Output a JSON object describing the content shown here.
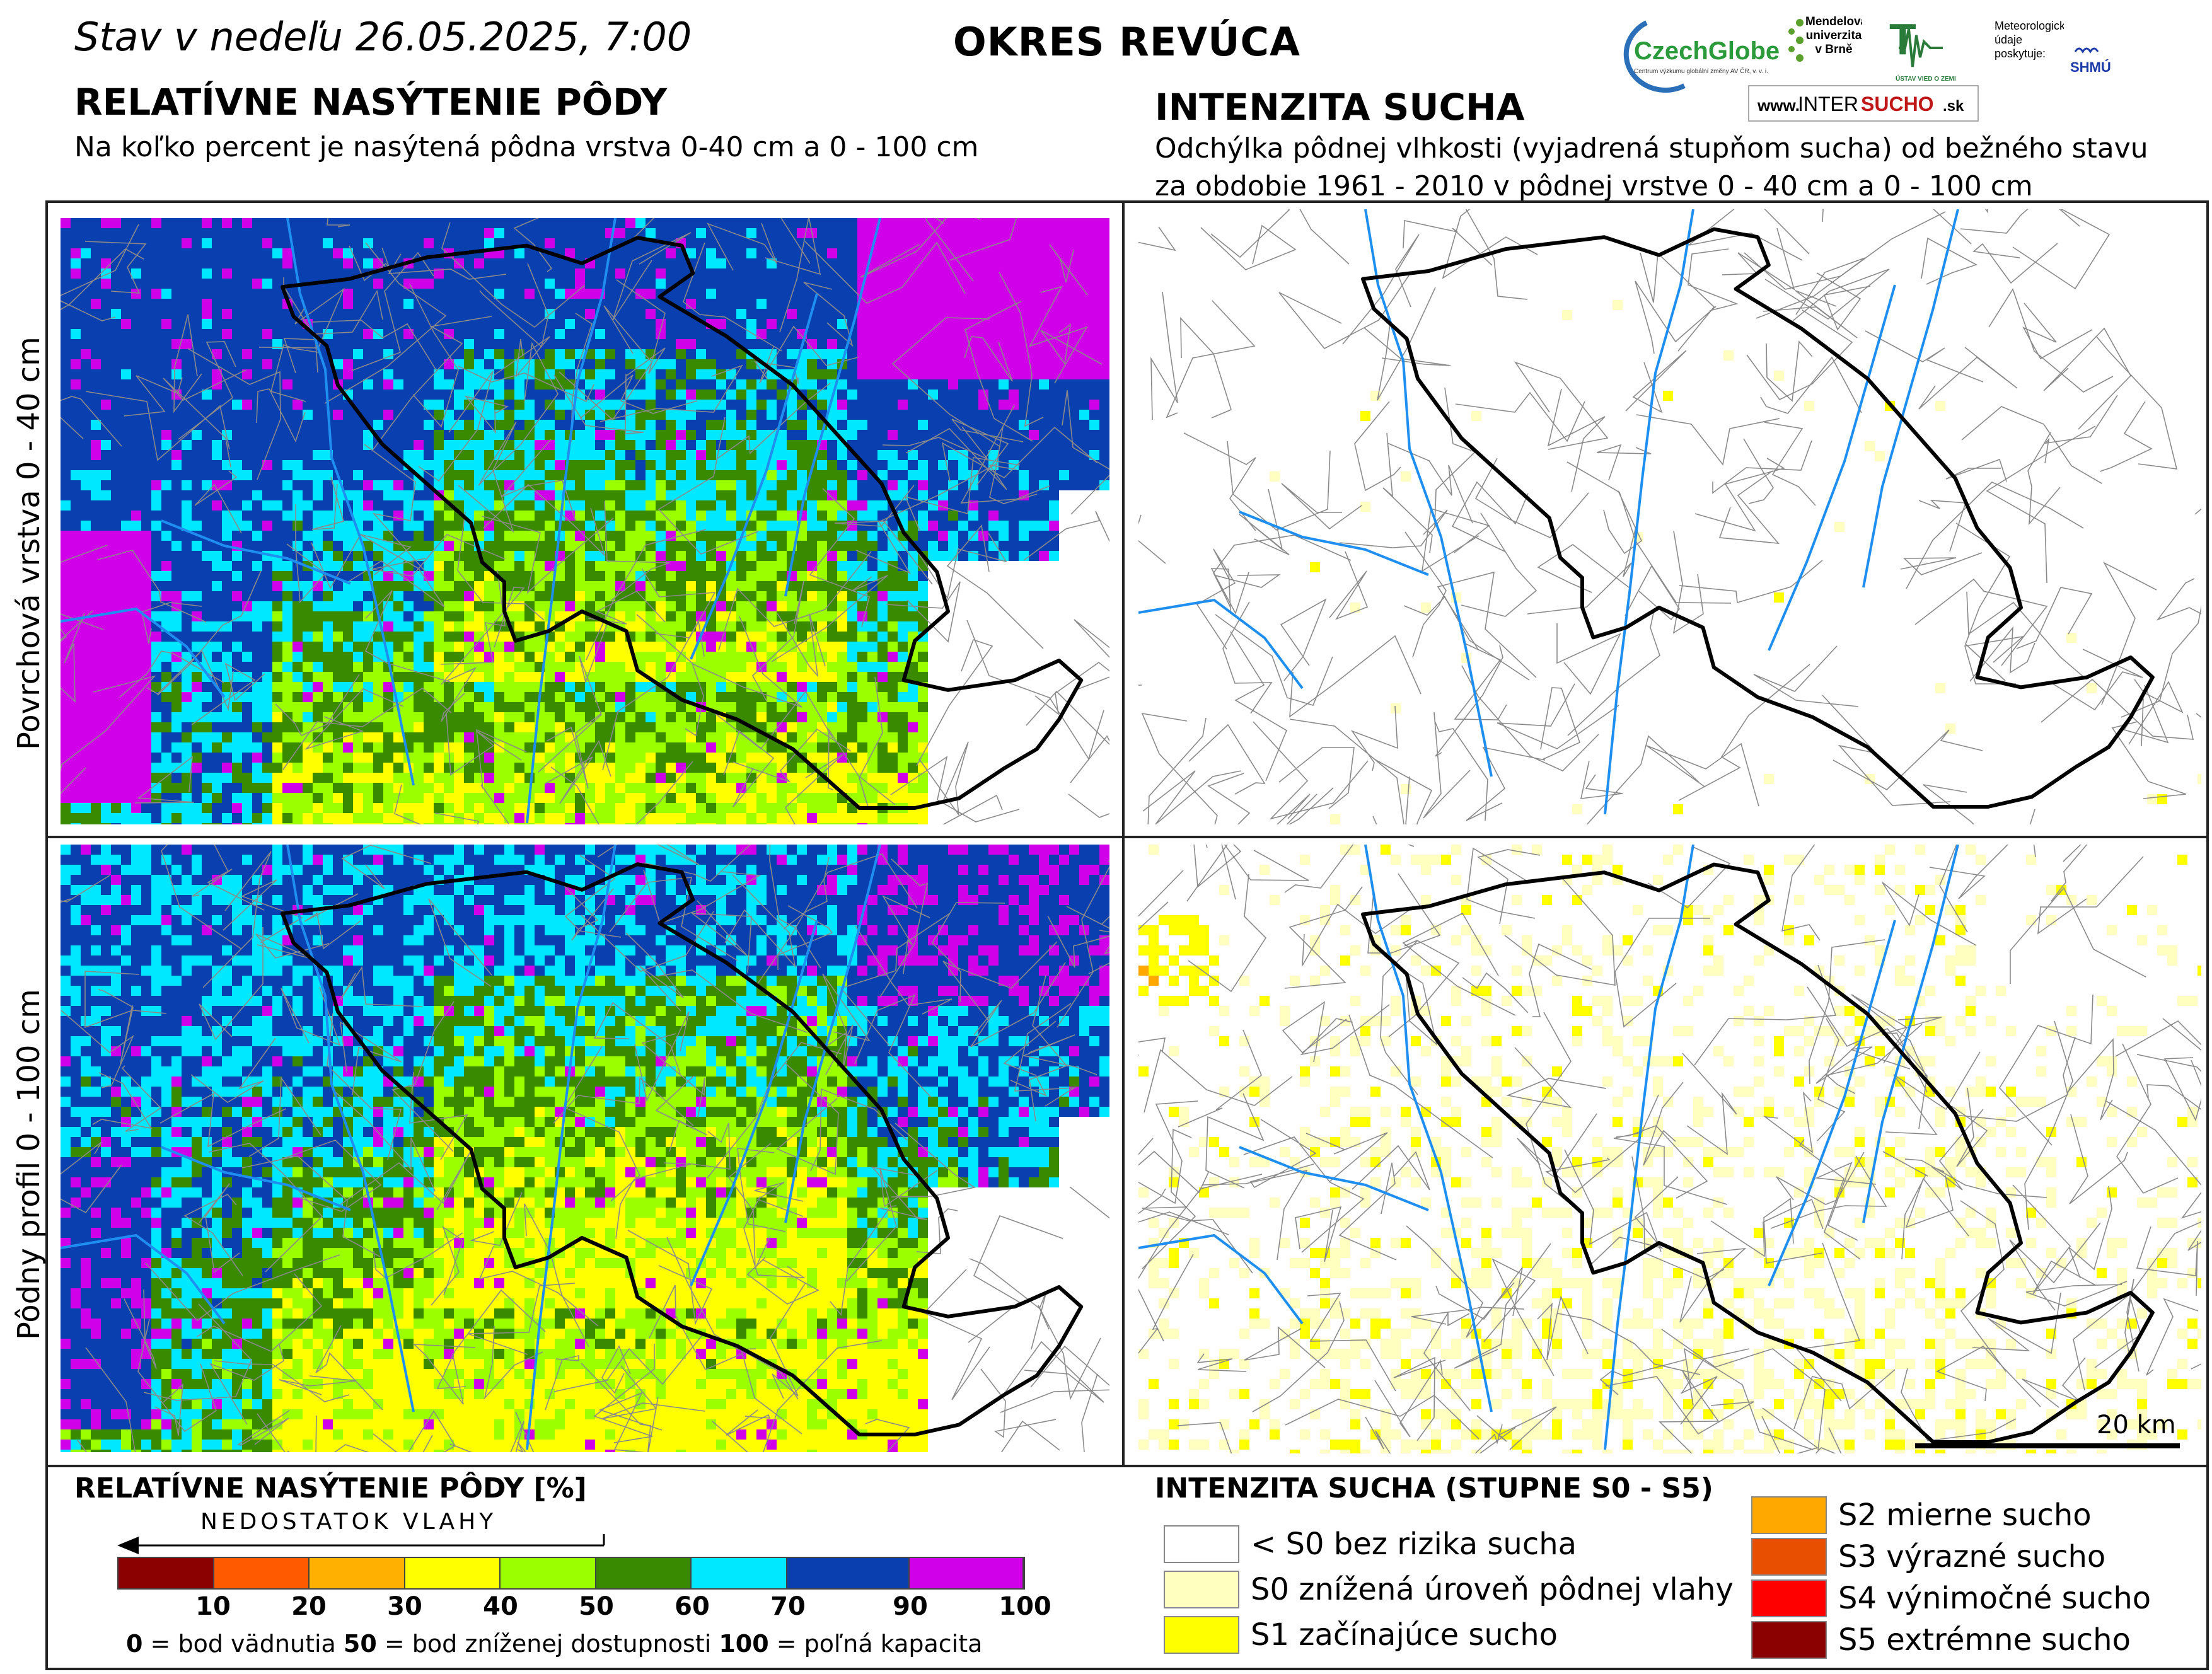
{
  "header": {
    "date_text": "Stav v nedeľu 26.05.2025, 7:00",
    "district": "OKRES  REVÚCA"
  },
  "left": {
    "title": "RELATÍVNE NASÝTENIE PÔDY",
    "subtitle": "Na koľko percent je nasýtená pôdna vrstva 0-40 cm a 0 - 100 cm"
  },
  "right": {
    "title": "INTENZITA SUCHA",
    "subtitle_line1": "Odchýlka pôdnej vlhkosti (vyjadrená stupňom sucha) od bežného stavu",
    "subtitle_line2": "za obdobie 1961 - 2010 v pôdnej vrstve 0 - 40 cm a 0 - 100 cm"
  },
  "logos": {
    "czechglobe": "CzechGlobe",
    "czechglobe_sub": "Centrum výzkumu globální změny AV ČR, v. v. i.",
    "mendel": "Mendelova univerzita v Brně",
    "uvz": "ÚSTAV VIED O ZEMI",
    "meteo_note": "Meteorologické údaje poskytuje:",
    "shmu": "SHMÚ",
    "intersucho_www": "www.",
    "intersucho_a": "INTER",
    "intersucho_b": "SUCHO",
    "intersucho_c": ".sk"
  },
  "rows": {
    "top": "Povrchová vrstva 0 - 40 cm",
    "bottom": "Pôdny profil 0 - 100 cm"
  },
  "scale_bar": "20 km",
  "legend_saturation": {
    "title": "RELATÍVNE NASÝTENIE PÔDY [%]",
    "arrow_label": "NEDOSTATOK VLAHY",
    "classes": [
      {
        "color": "#8b0000",
        "to": 10
      },
      {
        "color": "#ff5a00",
        "to": 20
      },
      {
        "color": "#ffb000",
        "to": 30
      },
      {
        "color": "#ffff00",
        "to": 40
      },
      {
        "color": "#9cff00",
        "to": 50
      },
      {
        "color": "#3a8a00",
        "to": 60
      },
      {
        "color": "#00e8ff",
        "to": 70
      },
      {
        "color": "#0a3fb0",
        "to": 90
      },
      {
        "color": "#d000e8",
        "to": 100
      }
    ],
    "ticks": [
      "10",
      "20",
      "30",
      "40",
      "50",
      "60",
      "70",
      "90",
      "100"
    ],
    "note_0": "0",
    "note_0_text": " = bod vädnutia  ",
    "note_50": "50",
    "note_50_text": " = bod zníženej dostupnosti  ",
    "note_100": "100",
    "note_100_text": " = poľná kapacita"
  },
  "legend_drought": {
    "title": "INTENZITA SUCHA (STUPNE S0 - S5)",
    "items_left": [
      {
        "color": "#ffffff",
        "label": "< S0 bez rizika sucha"
      },
      {
        "color": "#ffffc0",
        "label": "S0 znížená úroveň pôdnej vlahy"
      },
      {
        "color": "#ffff00",
        "label": "S1 začínajúce sucho"
      }
    ],
    "items_right": [
      {
        "color": "#ffa800",
        "label": "S2 mierne sucho"
      },
      {
        "color": "#e85000",
        "label": "S3 výrazné sucho"
      },
      {
        "color": "#ff0000",
        "label": "S4 výnimočné sucho"
      },
      {
        "color": "#8b0000",
        "label": "S5 extrémne sucho"
      }
    ]
  }
}
